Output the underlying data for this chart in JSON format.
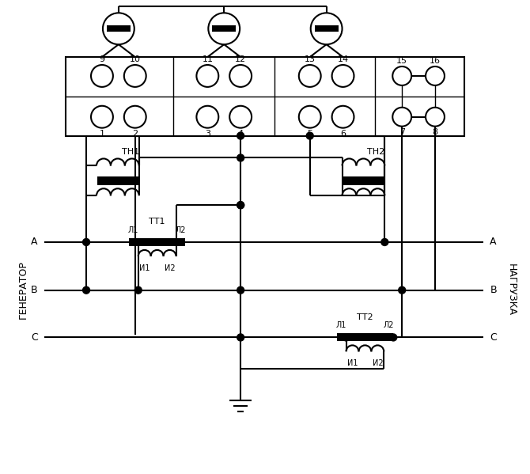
{
  "bg": "#ffffff",
  "lc": "#000000",
  "lw": 1.5,
  "fw": 6.7,
  "fh": 5.99,
  "num_top": [
    "9",
    "10",
    "11",
    "12",
    "13",
    "14",
    "15",
    "16"
  ],
  "num_bot": [
    "1",
    "2",
    "3",
    "4",
    "5",
    "6",
    "7",
    "8"
  ],
  "label_gen": "ГЕНЕРАТОР",
  "label_load": "НАГРУЗКА",
  "label_A": "А",
  "label_B": "В",
  "label_C": "С",
  "label_TT1": "ТТ1",
  "label_TT2": "ТТ2",
  "label_TN1": "ТН1",
  "label_TN2": "ТН2",
  "label_L1": "Л1",
  "label_L2": "Л2",
  "label_I1": "И1",
  "label_I2": "И2"
}
